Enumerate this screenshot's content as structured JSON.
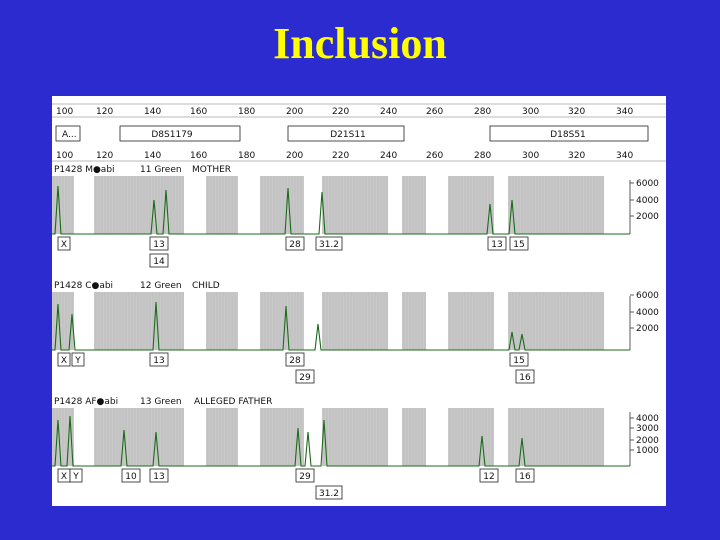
{
  "slide": {
    "title": "Inclusion"
  },
  "ruler": {
    "ticks": [
      "100",
      "120",
      "140",
      "160",
      "180",
      "200",
      "220",
      "240",
      "260",
      "280",
      "300",
      "320",
      "340"
    ],
    "loci": [
      {
        "id": "a",
        "label": "A..."
      },
      {
        "id": "d8",
        "label": "D8S1179"
      },
      {
        "id": "d21",
        "label": "D21S11"
      },
      {
        "id": "d18",
        "label": "D18S51"
      }
    ]
  },
  "lanes": [
    {
      "id": "mother",
      "header": "P1428 M●abi",
      "sample": "11 Green",
      "role": "MOTHER",
      "scale": [
        "6000",
        "4000",
        "2000"
      ],
      "row1": [
        "X",
        "13",
        "28",
        "31.2",
        "13",
        "15"
      ],
      "row2": [
        "14"
      ]
    },
    {
      "id": "child",
      "header": "P1428 C●abi",
      "sample": "12 Green",
      "role": "CHILD",
      "scale": [
        "6000",
        "4000",
        "2000"
      ],
      "row1": [
        "X",
        "Y",
        "13",
        "28",
        "15"
      ],
      "row2": [
        "29",
        "16"
      ]
    },
    {
      "id": "father",
      "header": "P1428 AF●abi",
      "sample": "13 Green",
      "role": "ALLEGED FATHER",
      "scale": [
        "4000",
        "3000",
        "2000",
        "1000"
      ],
      "row1": [
        "X",
        "Y",
        "10",
        "13",
        "29",
        "12",
        "16"
      ],
      "row2": [
        "31.2"
      ]
    }
  ],
  "colors": {
    "background": "#2b2bd0",
    "title": "#ffff00",
    "trace": "#1a6b1a",
    "bins": "#c8c8c8"
  }
}
